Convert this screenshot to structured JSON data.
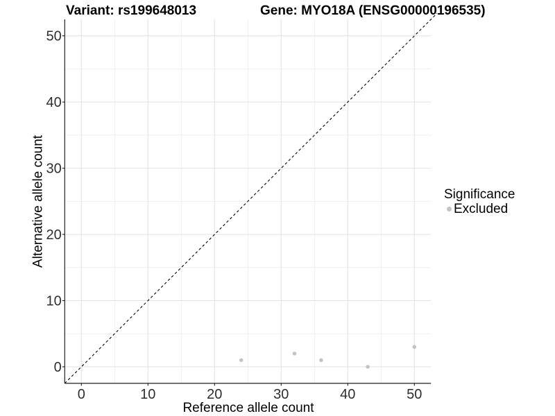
{
  "figure": {
    "title_left": "Variant: rs199648013",
    "title_right": "Gene: MYO18A (ENSG00000196535)"
  },
  "chart_data": {
    "type": "scatter",
    "title": "Variant: rs199648013 — Gene: MYO18A (ENSG00000196535)",
    "xlabel": "Reference allele count",
    "ylabel": "Alternative allele count",
    "xlim": [
      -2.5,
      52.5
    ],
    "ylim": [
      -2.5,
      52.5
    ],
    "x_ticks": [
      0,
      10,
      20,
      30,
      40,
      50
    ],
    "y_ticks": [
      0,
      10,
      20,
      30,
      40,
      50
    ],
    "grid": {
      "major": true,
      "minor": true,
      "minor_step": 5
    },
    "identity_line": {
      "style": "dashed",
      "color": "#000000",
      "from": -2.5,
      "to": 53.4
    },
    "series": [
      {
        "name": "Excluded",
        "color": "#c4c4c4",
        "points": [
          [
            24,
            1
          ],
          [
            32,
            2
          ],
          [
            36,
            1
          ],
          [
            43,
            0
          ],
          [
            50,
            3
          ]
        ]
      }
    ],
    "legend": {
      "title": "Significance",
      "position": "right",
      "entries": [
        {
          "label": "Excluded",
          "color": "#c4c4c4"
        }
      ]
    }
  },
  "colors": {
    "background": "#ffffff",
    "grid_major": "#e2e2e2",
    "grid_minor": "#efefef",
    "axis_line": "#1f1f1f",
    "tick_label": "#2e2e2e",
    "point": "#c4c4c4",
    "dashed_line": "#000000"
  }
}
